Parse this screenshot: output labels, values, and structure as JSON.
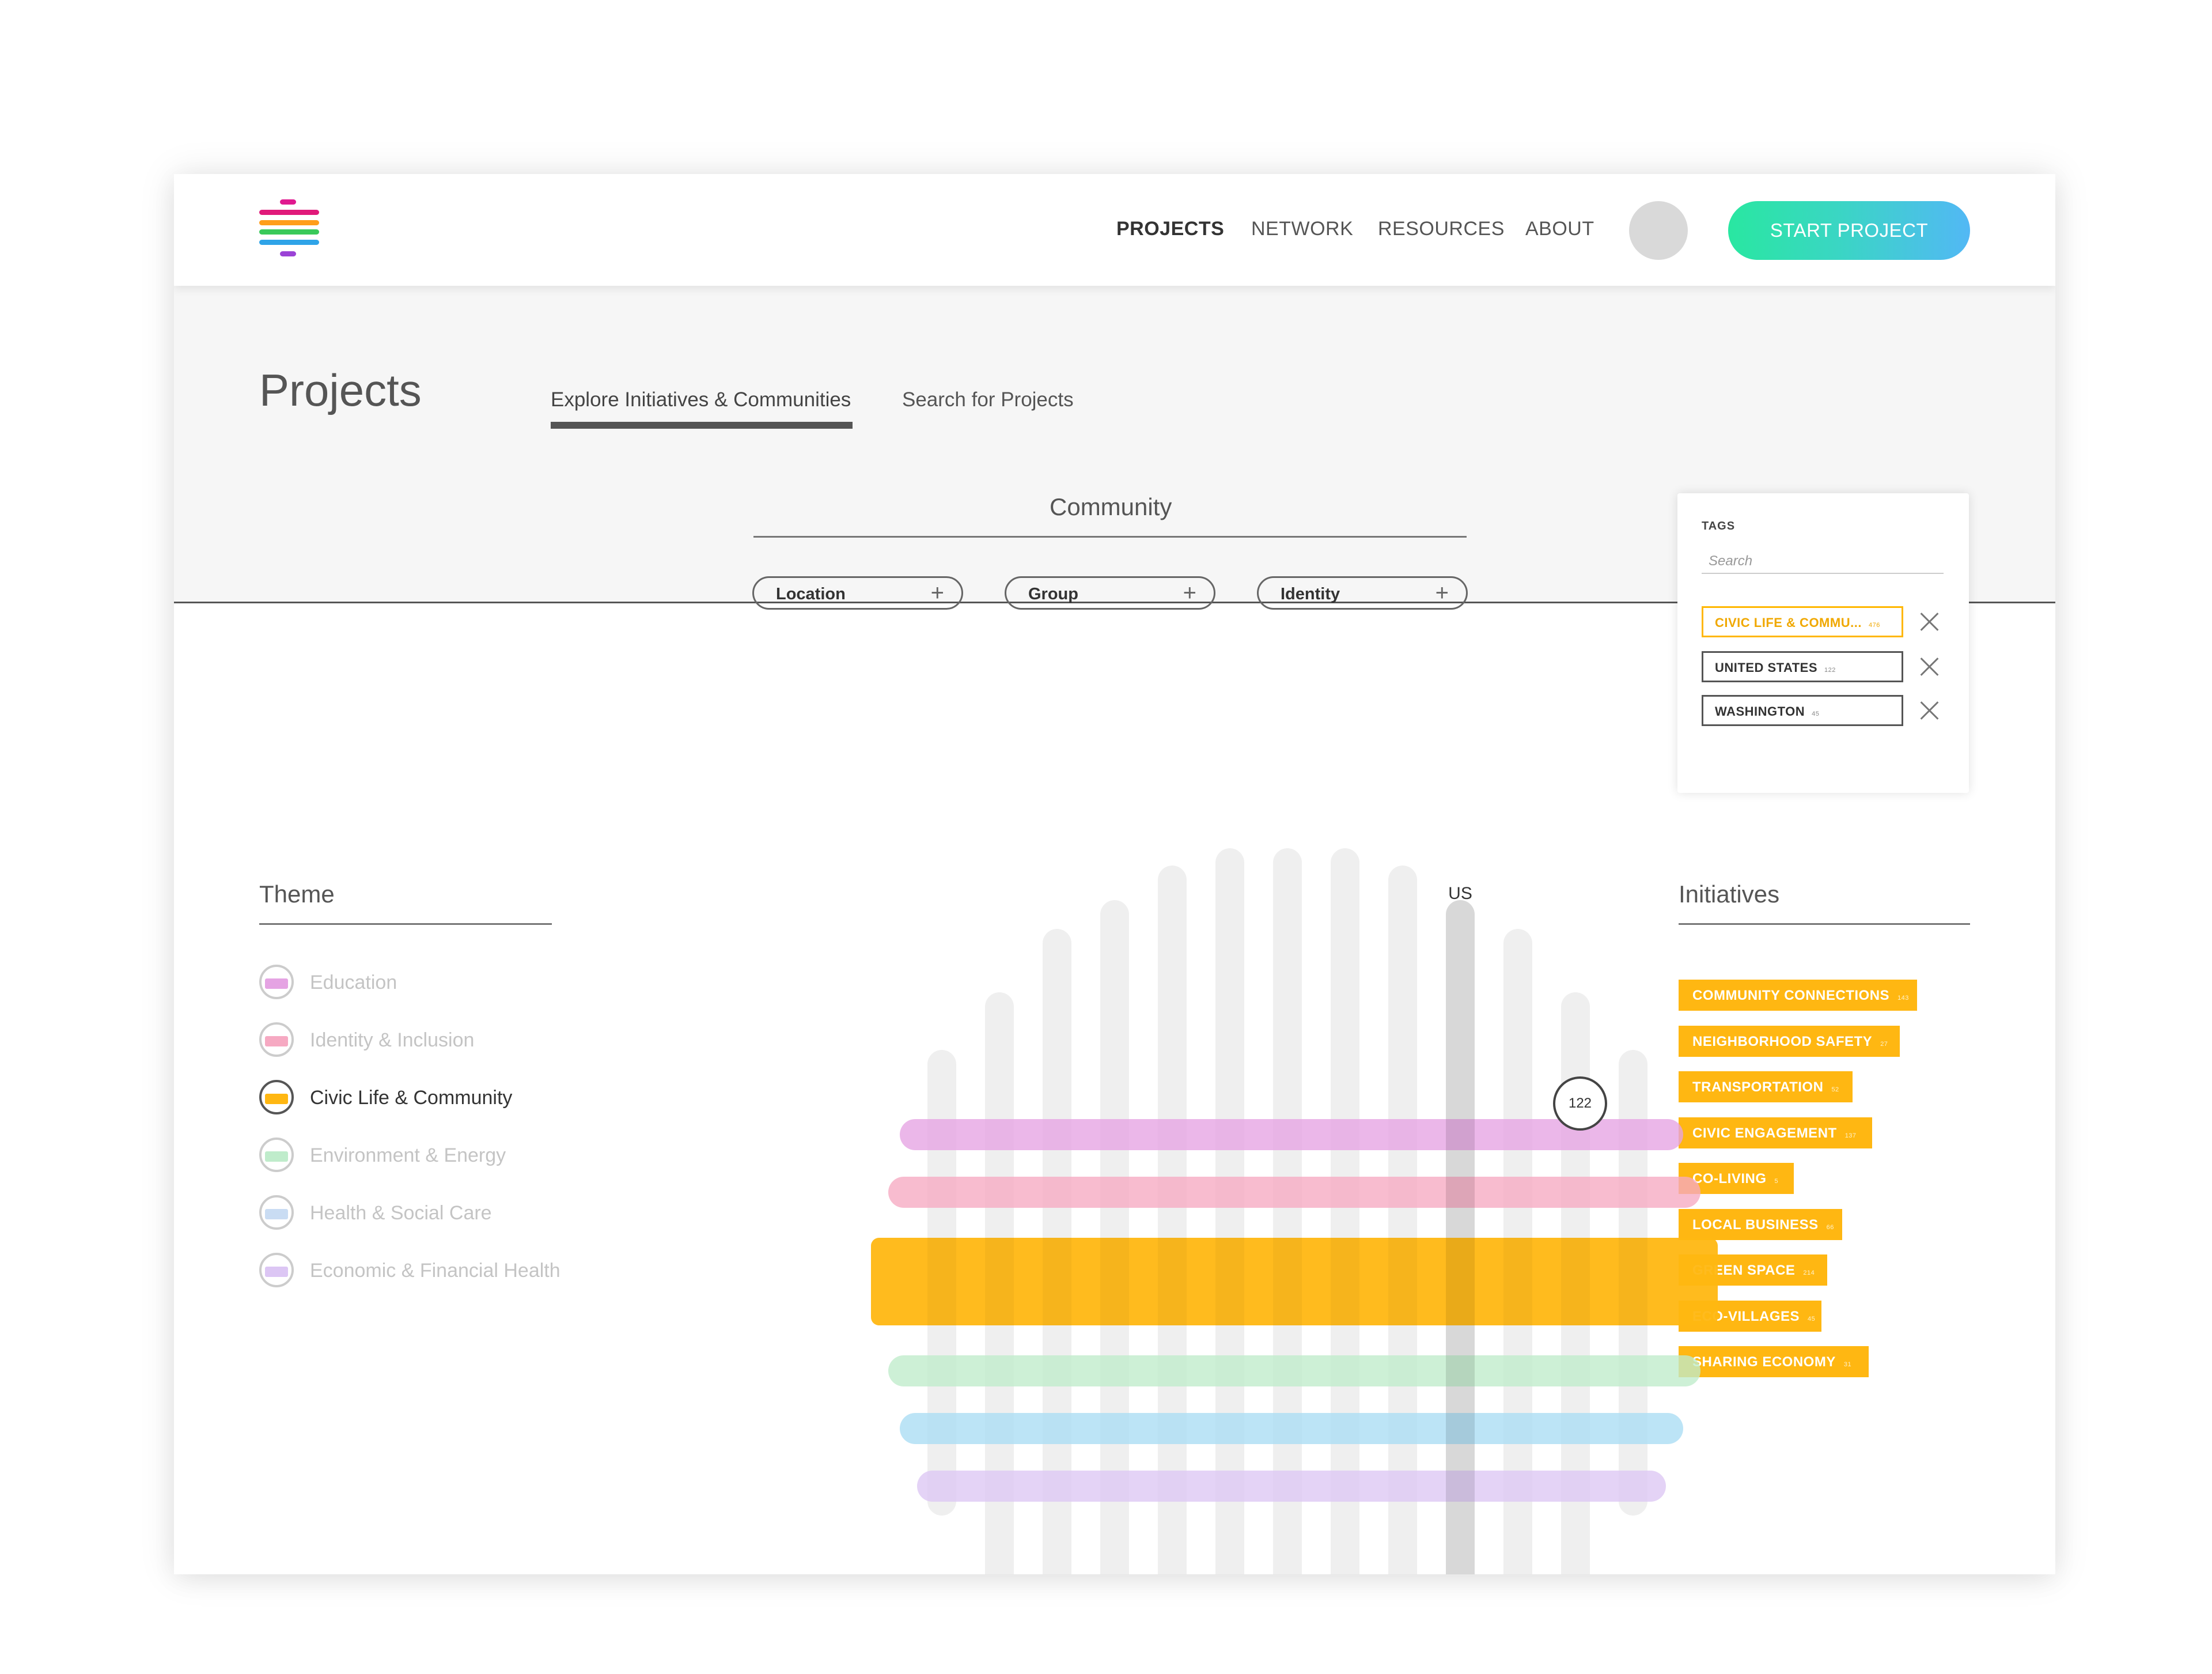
{
  "header": {
    "nav": [
      "PROJECTS",
      "NETWORK",
      "RESOURCES",
      "ABOUT"
    ],
    "cta_label": "START PROJECT"
  },
  "page": {
    "title": "Projects",
    "tabs": [
      "Explore Initiatives & Communities",
      "Search for Projects"
    ]
  },
  "community": {
    "title": "Community",
    "filters": [
      "Location",
      "Group",
      "Identity"
    ]
  },
  "tags": {
    "title": "TAGS",
    "search_placeholder": "Search",
    "items": [
      {
        "label": "CIVIC LIFE & COMMU...",
        "count": "476",
        "highlighted": true
      },
      {
        "label": "UNITED STATES",
        "count": "122",
        "highlighted": false
      },
      {
        "label": "WASHINGTON",
        "count": "45",
        "highlighted": false
      }
    ]
  },
  "theme": {
    "title": "Theme",
    "items": [
      {
        "label": "Education",
        "color": "#e5a3e3",
        "selected": false
      },
      {
        "label": "Identity & Inclusion",
        "color": "#f6a9c2",
        "selected": false
      },
      {
        "label": "Civic Life & Community",
        "color": "#ffb712",
        "selected": true
      },
      {
        "label": "Environment & Energy",
        "color": "#bfeccb",
        "selected": false
      },
      {
        "label": "Health & Social Care",
        "color": "#c9dcf3",
        "selected": false
      },
      {
        "label": "Economic & Financial Health",
        "color": "#dcc6f4",
        "selected": false
      }
    ]
  },
  "initiatives": {
    "title": "Initiatives",
    "items": [
      {
        "label": "COMMUNITY CONNECTIONS",
        "count": "143"
      },
      {
        "label": "NEIGHBORHOOD SAFETY",
        "count": "27"
      },
      {
        "label": "TRANSPORTATION",
        "count": "52"
      },
      {
        "label": "CIVIC ENGAGEMENT",
        "count": "137"
      },
      {
        "label": "CO-LIVING",
        "count": "5"
      },
      {
        "label": "LOCAL BUSINESS",
        "count": "66"
      },
      {
        "label": "GREEN SPACE",
        "count": "214"
      },
      {
        "label": "ECO-VILLAGES",
        "count": "45"
      },
      {
        "label": "SHARING ECONOMY",
        "count": "31"
      }
    ]
  },
  "chart": {
    "highlight_column_label": "US",
    "selected_count": "122",
    "columns": 13,
    "highlighted_column_index": 9,
    "selected_row_index": 2,
    "row_colors": [
      "#e5a3e3",
      "#f6a9c2",
      "#ffb712",
      "#bfeccb",
      "#a9dcf3",
      "#dcc6f4"
    ]
  }
}
